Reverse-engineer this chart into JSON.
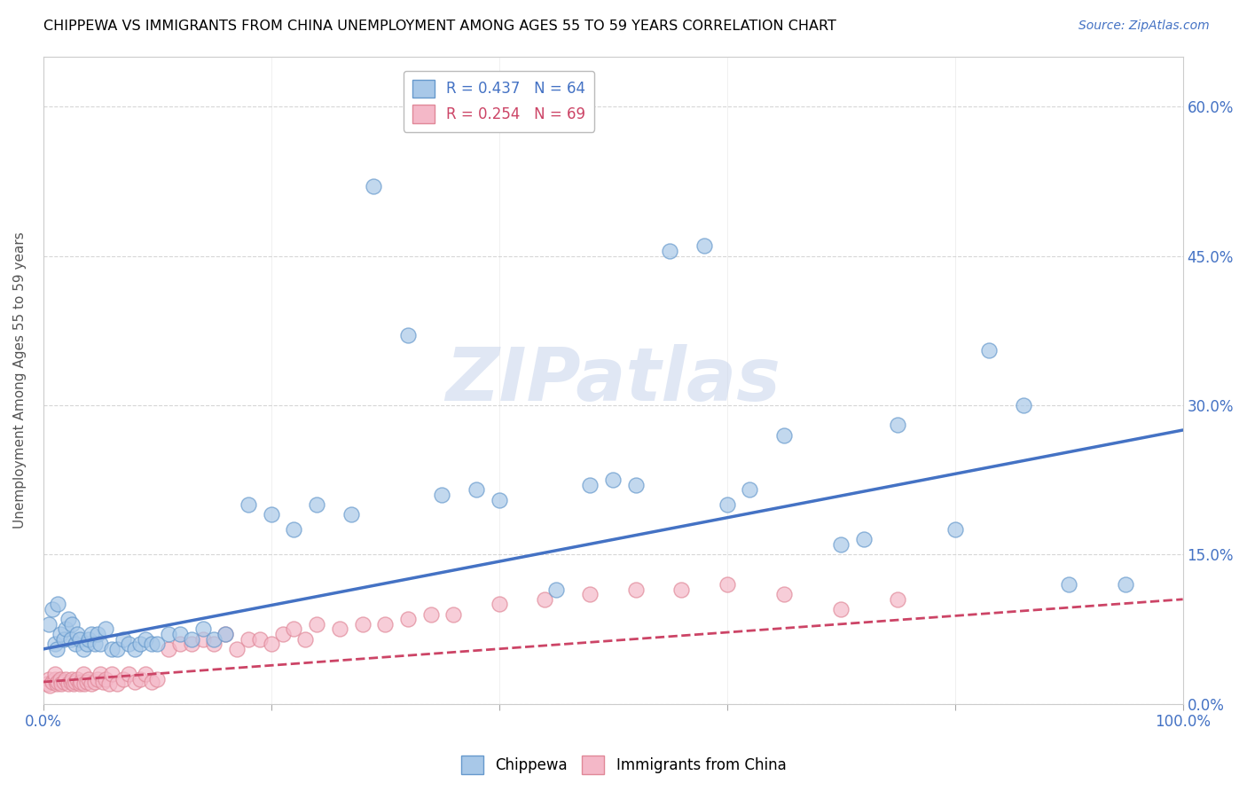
{
  "title": "CHIPPEWA VS IMMIGRANTS FROM CHINA UNEMPLOYMENT AMONG AGES 55 TO 59 YEARS CORRELATION CHART",
  "source": "Source: ZipAtlas.com",
  "xlabel": "",
  "ylabel": "Unemployment Among Ages 55 to 59 years",
  "xlim": [
    0.0,
    1.0
  ],
  "ylim": [
    0.0,
    0.65
  ],
  "x_ticks": [
    0.0,
    0.2,
    0.4,
    0.6,
    0.8,
    1.0
  ],
  "x_tick_labels": [
    "0.0%",
    "",
    "",
    "",
    "",
    "100.0%"
  ],
  "y_ticks": [
    0.0,
    0.15,
    0.3,
    0.45,
    0.6
  ],
  "y_tick_labels_right": [
    "0.0%",
    "15.0%",
    "30.0%",
    "45.0%",
    "60.0%"
  ],
  "chippewa_R": "0.437",
  "chippewa_N": "64",
  "immigrants_R": "0.254",
  "immigrants_N": "69",
  "chippewa_color": "#a8c8e8",
  "chippewa_edge_color": "#6699cc",
  "chippewa_line_color": "#4472c4",
  "immigrants_color": "#f4b8c8",
  "immigrants_edge_color": "#e08898",
  "immigrants_line_color": "#cc4466",
  "watermark_color": "#e8eef8",
  "chippewa_x": [
    0.005,
    0.008,
    0.01,
    0.012,
    0.013,
    0.015,
    0.018,
    0.02,
    0.022,
    0.024,
    0.025,
    0.028,
    0.03,
    0.032,
    0.035,
    0.038,
    0.04,
    0.042,
    0.045,
    0.048,
    0.05,
    0.055,
    0.06,
    0.065,
    0.07,
    0.075,
    0.08,
    0.085,
    0.09,
    0.095,
    0.1,
    0.11,
    0.12,
    0.13,
    0.14,
    0.15,
    0.16,
    0.18,
    0.2,
    0.22,
    0.24,
    0.27,
    0.29,
    0.32,
    0.35,
    0.38,
    0.4,
    0.45,
    0.48,
    0.5,
    0.52,
    0.55,
    0.58,
    0.6,
    0.62,
    0.65,
    0.7,
    0.72,
    0.75,
    0.8,
    0.83,
    0.86,
    0.9,
    0.95
  ],
  "chippewa_y": [
    0.08,
    0.095,
    0.06,
    0.055,
    0.1,
    0.07,
    0.065,
    0.075,
    0.085,
    0.065,
    0.08,
    0.06,
    0.07,
    0.065,
    0.055,
    0.06,
    0.065,
    0.07,
    0.06,
    0.07,
    0.06,
    0.075,
    0.055,
    0.055,
    0.065,
    0.06,
    0.055,
    0.06,
    0.065,
    0.06,
    0.06,
    0.07,
    0.07,
    0.065,
    0.075,
    0.065,
    0.07,
    0.2,
    0.19,
    0.175,
    0.2,
    0.19,
    0.52,
    0.37,
    0.21,
    0.215,
    0.205,
    0.115,
    0.22,
    0.225,
    0.22,
    0.455,
    0.46,
    0.2,
    0.215,
    0.27,
    0.16,
    0.165,
    0.28,
    0.175,
    0.355,
    0.3,
    0.12,
    0.12
  ],
  "immigrants_x": [
    0.003,
    0.005,
    0.006,
    0.008,
    0.01,
    0.01,
    0.012,
    0.013,
    0.015,
    0.016,
    0.018,
    0.02,
    0.022,
    0.024,
    0.025,
    0.027,
    0.028,
    0.03,
    0.032,
    0.033,
    0.035,
    0.036,
    0.038,
    0.04,
    0.042,
    0.045,
    0.048,
    0.05,
    0.052,
    0.055,
    0.058,
    0.06,
    0.065,
    0.07,
    0.075,
    0.08,
    0.085,
    0.09,
    0.095,
    0.1,
    0.11,
    0.12,
    0.13,
    0.14,
    0.15,
    0.16,
    0.17,
    0.18,
    0.19,
    0.2,
    0.21,
    0.22,
    0.23,
    0.24,
    0.26,
    0.28,
    0.3,
    0.32,
    0.34,
    0.36,
    0.4,
    0.44,
    0.48,
    0.52,
    0.56,
    0.6,
    0.65,
    0.7,
    0.75
  ],
  "immigrants_y": [
    0.02,
    0.025,
    0.018,
    0.022,
    0.025,
    0.03,
    0.02,
    0.022,
    0.025,
    0.02,
    0.022,
    0.025,
    0.02,
    0.022,
    0.025,
    0.02,
    0.022,
    0.025,
    0.02,
    0.022,
    0.03,
    0.02,
    0.022,
    0.025,
    0.02,
    0.022,
    0.025,
    0.03,
    0.022,
    0.025,
    0.02,
    0.03,
    0.02,
    0.025,
    0.03,
    0.022,
    0.025,
    0.03,
    0.022,
    0.025,
    0.055,
    0.06,
    0.06,
    0.065,
    0.06,
    0.07,
    0.055,
    0.065,
    0.065,
    0.06,
    0.07,
    0.075,
    0.065,
    0.08,
    0.075,
    0.08,
    0.08,
    0.085,
    0.09,
    0.09,
    0.1,
    0.105,
    0.11,
    0.115,
    0.115,
    0.12,
    0.11,
    0.095,
    0.105
  ],
  "chip_trend_x0": 0.0,
  "chip_trend_y0": 0.055,
  "chip_trend_x1": 1.0,
  "chip_trend_y1": 0.275,
  "imm_trend_x0": 0.0,
  "imm_trend_y0": 0.022,
  "imm_trend_x1": 1.0,
  "imm_trend_y1": 0.105
}
